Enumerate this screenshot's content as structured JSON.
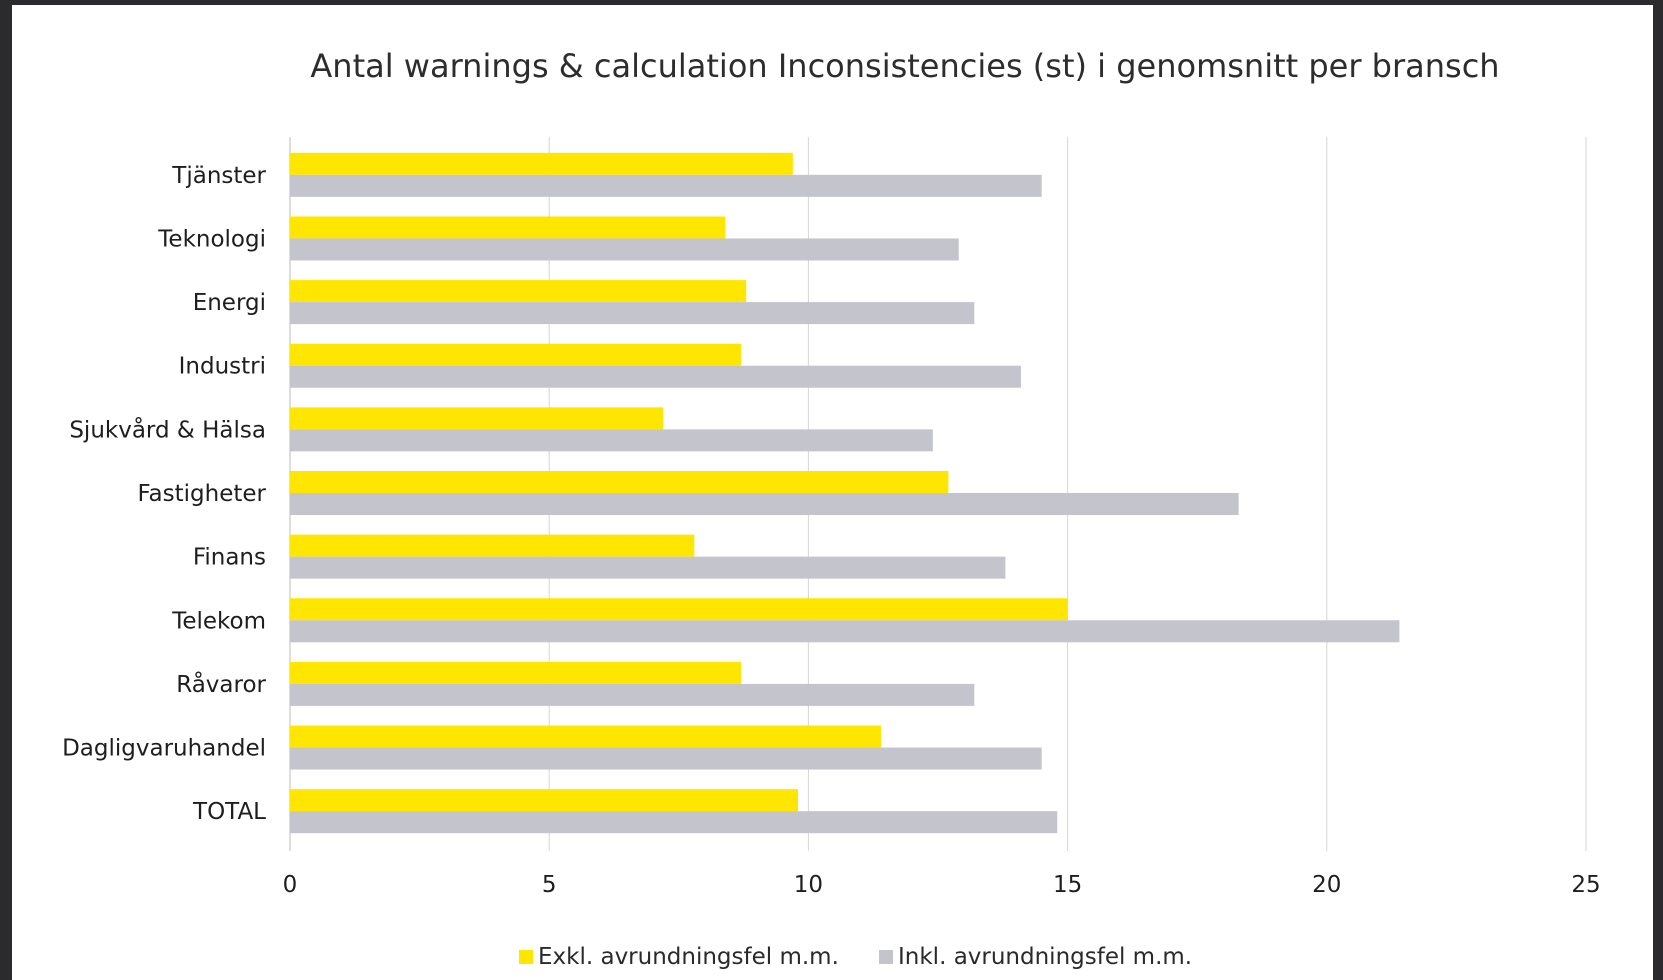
{
  "chart_data": {
    "type": "bar",
    "orientation": "horizontal",
    "title": "Antal warnings & calculation Inconsistencies (st) i genomsnitt per bransch",
    "xlabel": "",
    "ylabel": "",
    "xlim": [
      0,
      25
    ],
    "xticks": [
      "0",
      "5",
      "10",
      "15",
      "20",
      "25"
    ],
    "grid": true,
    "legend_position": "bottom",
    "categories": [
      "Tjänster",
      "Teknologi",
      "Energi",
      "Industri",
      "Sjukvård & Hälsa",
      "Fastigheter",
      "Finans",
      "Telekom",
      "Råvaror",
      "Dagligvaruhandel",
      "TOTAL"
    ],
    "series": [
      {
        "name": "Exkl. avrundningsfel m.m.",
        "color": "#ffe600",
        "values": [
          9.7,
          8.4,
          8.8,
          8.7,
          7.2,
          12.7,
          7.8,
          15.0,
          8.7,
          11.4,
          9.8
        ]
      },
      {
        "name": "Inkl. avrundningsfel m.m.",
        "color": "#c4c4cd",
        "values": [
          14.5,
          12.9,
          13.2,
          14.1,
          12.4,
          18.3,
          13.8,
          21.4,
          13.2,
          14.5,
          14.8
        ]
      }
    ]
  }
}
